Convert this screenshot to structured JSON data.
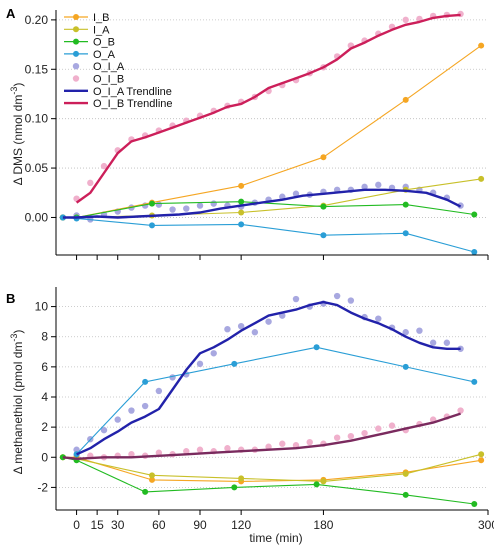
{
  "chart_data": [
    {
      "panel": "A",
      "type": "line",
      "xlabel": "",
      "ylabel": "Δ DMS (nmol dm⁻³)",
      "ylabel_main": "Δ DMS (nmol dm",
      "ylabel_sup": "-3",
      "ylabel_close": ")",
      "xlim": [
        -15,
        300
      ],
      "ylim": [
        -0.038,
        0.21
      ],
      "yticks": [
        0.0,
        0.05,
        0.1,
        0.15,
        0.2
      ],
      "ytick_labels": [
        "0.00",
        "0.05",
        "0.10",
        "0.15",
        "0.20"
      ],
      "grid": "horizontal dotted",
      "legend": "top-left",
      "series": [
        {
          "name": "I_B",
          "kind": "line-marker",
          "color": "#f5a623",
          "x": [
            -10,
            0,
            55,
            120,
            180,
            240,
            295
          ],
          "y": [
            0.0,
            0.0,
            0.015,
            0.032,
            0.061,
            0.119,
            0.174
          ]
        },
        {
          "name": "I_A",
          "kind": "line-marker",
          "color": "#c8c02a",
          "x": [
            -10,
            0,
            55,
            120,
            180,
            240,
            295
          ],
          "y": [
            0.0,
            0.0,
            0.002,
            0.005,
            0.012,
            0.028,
            0.039
          ]
        },
        {
          "name": "O_B",
          "kind": "line-marker",
          "color": "#22bb22",
          "x": [
            -10,
            0,
            55,
            120,
            180,
            240,
            290
          ],
          "y": [
            0.0,
            0.0,
            0.014,
            0.016,
            0.011,
            0.013,
            0.003
          ]
        },
        {
          "name": "O_A",
          "kind": "line-marker",
          "color": "#2a9ed6",
          "x": [
            -10,
            0,
            55,
            120,
            180,
            240,
            290
          ],
          "y": [
            0.0,
            -0.001,
            -0.008,
            -0.007,
            -0.018,
            -0.016,
            -0.035
          ]
        },
        {
          "name": "O_I_A",
          "kind": "points",
          "color": "#a8a8e0",
          "x": [
            -10,
            0,
            10,
            20,
            30,
            40,
            50,
            60,
            70,
            80,
            90,
            100,
            110,
            120,
            130,
            140,
            150,
            160,
            170,
            180,
            190,
            200,
            210,
            220,
            230,
            240,
            250,
            260,
            270,
            280
          ],
          "y": [
            0.0,
            0.002,
            -0.002,
            0.003,
            0.006,
            0.01,
            0.012,
            0.013,
            0.008,
            0.009,
            0.012,
            0.014,
            0.012,
            0.011,
            0.015,
            0.018,
            0.021,
            0.024,
            0.023,
            0.026,
            0.028,
            0.028,
            0.031,
            0.033,
            0.03,
            0.031,
            0.028,
            0.025,
            0.02,
            0.012
          ]
        },
        {
          "name": "O_I_B",
          "kind": "points",
          "color": "#f0b0cc",
          "x": [
            0,
            10,
            20,
            30,
            40,
            50,
            60,
            70,
            80,
            90,
            100,
            110,
            120,
            130,
            140,
            150,
            160,
            170,
            180,
            190,
            200,
            210,
            220,
            230,
            240,
            250,
            260,
            270,
            280
          ],
          "y": [
            0.019,
            0.035,
            0.052,
            0.068,
            0.079,
            0.083,
            0.088,
            0.093,
            0.098,
            0.103,
            0.108,
            0.113,
            0.117,
            0.122,
            0.128,
            0.134,
            0.139,
            0.146,
            0.152,
            0.163,
            0.174,
            0.179,
            0.186,
            0.193,
            0.2,
            0.201,
            0.204,
            0.205,
            0.206
          ]
        },
        {
          "name": "O_I_A Trendline",
          "kind": "line",
          "color": "#2222aa",
          "x": [
            -10,
            0,
            15,
            30,
            45,
            60,
            75,
            90,
            105,
            120,
            135,
            150,
            165,
            180,
            195,
            210,
            225,
            240,
            255,
            270,
            280
          ],
          "y": [
            0.0,
            0.0,
            0.001,
            0.0,
            0.001,
            0.002,
            0.003,
            0.005,
            0.009,
            0.012,
            0.015,
            0.018,
            0.022,
            0.024,
            0.026,
            0.028,
            0.028,
            0.027,
            0.025,
            0.018,
            0.011
          ]
        },
        {
          "name": "O_I_B Trendline",
          "kind": "line",
          "color": "#cc1f5a",
          "x": [
            0,
            10,
            20,
            30,
            40,
            50,
            60,
            70,
            80,
            90,
            100,
            110,
            120,
            130,
            140,
            150,
            160,
            170,
            180,
            190,
            200,
            210,
            220,
            230,
            240,
            250,
            260,
            270,
            280
          ],
          "y": [
            0.015,
            0.025,
            0.045,
            0.065,
            0.077,
            0.081,
            0.086,
            0.091,
            0.096,
            0.101,
            0.106,
            0.112,
            0.115,
            0.122,
            0.131,
            0.136,
            0.141,
            0.146,
            0.152,
            0.16,
            0.171,
            0.177,
            0.184,
            0.19,
            0.195,
            0.198,
            0.202,
            0.204,
            0.205
          ]
        }
      ]
    },
    {
      "panel": "B",
      "type": "line",
      "xlabel": "time (min)",
      "ylabel": "Δ methanethiol (pmol dm⁻³)",
      "ylabel_main": "Δ methanethiol (pmol dm",
      "ylabel_sup": "-3",
      "ylabel_close": ")",
      "xlim": [
        -15,
        300
      ],
      "ylim": [
        -3.5,
        11.3
      ],
      "yticks": [
        -2,
        0,
        2,
        4,
        6,
        8,
        10
      ],
      "ytick_labels": [
        "-2",
        "0",
        "2",
        "4",
        "6",
        "8",
        "10"
      ],
      "xticks": [
        0,
        15,
        30,
        60,
        90,
        120,
        180,
        300
      ],
      "xtick_labels": [
        "0",
        "15",
        "30",
        "60",
        "90",
        "120",
        "180",
        "300"
      ],
      "grid": "horizontal dotted",
      "series": [
        {
          "name": "I_B",
          "kind": "line-marker",
          "color": "#f5a623",
          "x": [
            -10,
            0,
            55,
            120,
            180,
            240,
            295
          ],
          "y": [
            0.0,
            0.0,
            -1.5,
            -1.6,
            -1.5,
            -1.0,
            -0.2
          ]
        },
        {
          "name": "I_A",
          "kind": "line-marker",
          "color": "#c8c02a",
          "x": [
            -10,
            0,
            55,
            120,
            180,
            240,
            295
          ],
          "y": [
            0.0,
            -0.1,
            -1.2,
            -1.4,
            -1.6,
            -1.1,
            0.2
          ]
        },
        {
          "name": "O_B",
          "kind": "line-marker",
          "color": "#22bb22",
          "x": [
            -10,
            0,
            50,
            115,
            175,
            240,
            290
          ],
          "y": [
            0.0,
            -0.2,
            -2.3,
            -2.0,
            -1.8,
            -2.5,
            -3.1
          ]
        },
        {
          "name": "O_A",
          "kind": "line-marker",
          "color": "#2a9ed6",
          "x": [
            0,
            50,
            115,
            175,
            240,
            290
          ],
          "y": [
            0.2,
            5.0,
            6.2,
            7.3,
            6.0,
            5.0
          ]
        },
        {
          "name": "O_I_A",
          "kind": "points",
          "color": "#a8a8e0",
          "x": [
            0,
            10,
            20,
            30,
            40,
            50,
            60,
            70,
            80,
            90,
            100,
            110,
            120,
            130,
            140,
            150,
            160,
            170,
            180,
            190,
            200,
            210,
            220,
            230,
            240,
            250,
            260,
            270,
            280
          ],
          "y": [
            0.5,
            1.2,
            1.8,
            2.5,
            3.1,
            3.4,
            4.4,
            5.3,
            5.5,
            6.2,
            6.9,
            8.5,
            8.7,
            8.3,
            9.0,
            9.4,
            10.5,
            10.0,
            10.2,
            10.7,
            10.4,
            9.3,
            9.2,
            8.6,
            8.3,
            8.4,
            7.6,
            7.6,
            7.2
          ]
        },
        {
          "name": "O_I_B",
          "kind": "points",
          "color": "#f0b0cc",
          "x": [
            0,
            10,
            20,
            30,
            40,
            50,
            60,
            70,
            80,
            90,
            100,
            110,
            120,
            130,
            140,
            150,
            160,
            170,
            180,
            190,
            200,
            210,
            220,
            230,
            240,
            250,
            260,
            270,
            280
          ],
          "y": [
            0.1,
            0.1,
            0.0,
            0.1,
            0.2,
            0.1,
            0.3,
            0.2,
            0.4,
            0.5,
            0.4,
            0.6,
            0.5,
            0.5,
            0.7,
            0.9,
            0.8,
            1.0,
            0.9,
            1.3,
            1.4,
            1.6,
            1.9,
            2.1,
            1.8,
            2.2,
            2.5,
            2.7,
            3.1
          ]
        },
        {
          "name": "O_I_A Trendline",
          "kind": "line",
          "color": "#2222aa",
          "x": [
            0,
            10,
            20,
            30,
            40,
            50,
            60,
            70,
            80,
            90,
            100,
            110,
            120,
            130,
            140,
            150,
            160,
            170,
            180,
            190,
            200,
            210,
            220,
            230,
            240,
            250,
            260,
            270,
            280
          ],
          "y": [
            0.2,
            0.6,
            1.2,
            1.7,
            2.3,
            2.7,
            3.2,
            4.5,
            5.8,
            6.9,
            7.3,
            7.8,
            8.4,
            8.9,
            9.4,
            9.6,
            9.8,
            10.1,
            10.3,
            10.1,
            9.6,
            9.2,
            8.9,
            8.5,
            8.0,
            7.6,
            7.3,
            7.2,
            7.2
          ]
        },
        {
          "name": "O_I_B Trendline",
          "kind": "line",
          "color": "#7a2a5e",
          "x": [
            -10,
            0,
            20,
            40,
            60,
            80,
            100,
            120,
            140,
            160,
            180,
            200,
            220,
            240,
            260,
            280
          ],
          "y": [
            0.0,
            -0.1,
            0.0,
            0.0,
            0.1,
            0.2,
            0.3,
            0.4,
            0.5,
            0.6,
            0.8,
            1.1,
            1.5,
            1.9,
            2.3,
            2.9
          ]
        }
      ]
    }
  ]
}
